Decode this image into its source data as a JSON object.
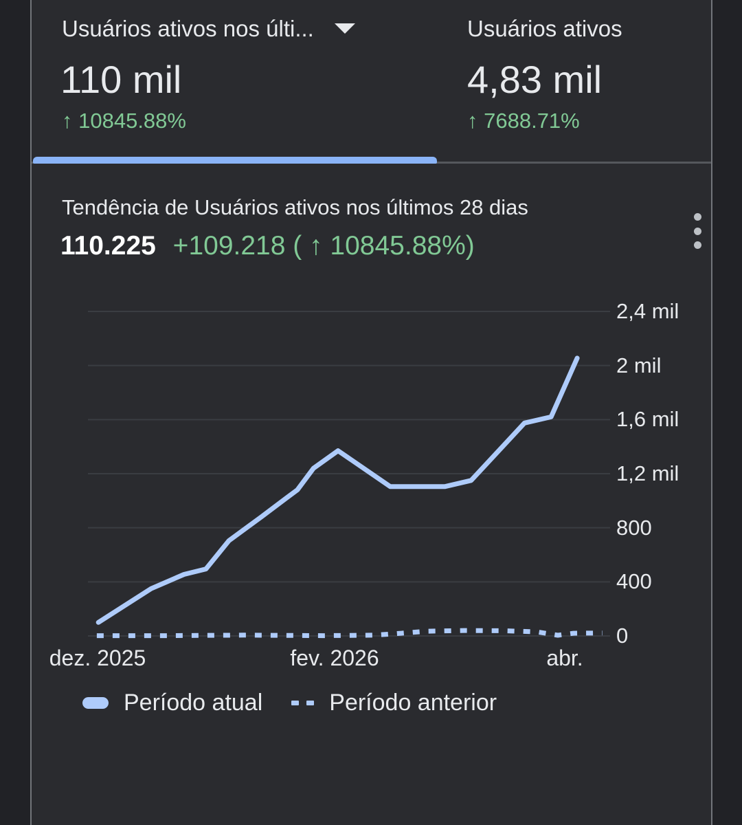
{
  "tabs": [
    {
      "label": "Usuários ativos nos últi...",
      "value": "110 mil",
      "delta": "↑ 10845.88%",
      "selected": true
    },
    {
      "label": "Usuários ativos",
      "value": "4,83 mil",
      "delta": "↑ 7688.71%",
      "selected": false
    }
  ],
  "chart": {
    "title": "Tendência de Usuários ativos nos últimos 28 dias",
    "value": "110.225",
    "delta": "+109.218 ( ↑ 10845.88%)"
  },
  "chart_data": {
    "type": "line",
    "title": "Tendência de Usuários ativos nos últimos 28 dias",
    "ylim": [
      0,
      2400
    ],
    "grid": true,
    "legend_position": "bottom",
    "y_ticks": [
      {
        "v": 2400,
        "label": "2,4 mil"
      },
      {
        "v": 2000,
        "label": "2 mil"
      },
      {
        "v": 1600,
        "label": "1,6 mil"
      },
      {
        "v": 1200,
        "label": "1,2 mil"
      },
      {
        "v": 800,
        "label": "800"
      },
      {
        "v": 400,
        "label": "400"
      },
      {
        "v": 0,
        "label": "0"
      }
    ],
    "x_ticks": [
      {
        "f": 0.018,
        "label": "dez. 2025"
      },
      {
        "f": 0.472,
        "label": "fev. 2026"
      },
      {
        "f": 0.913,
        "label": "abr."
      }
    ],
    "series": [
      {
        "name": "Período atual",
        "style": "solid",
        "color": "#aecbfa",
        "points": [
          {
            "f": 0.02,
            "v": 100
          },
          {
            "f": 0.121,
            "v": 350
          },
          {
            "f": 0.184,
            "v": 455
          },
          {
            "f": 0.226,
            "v": 495
          },
          {
            "f": 0.27,
            "v": 705
          },
          {
            "f": 0.332,
            "v": 880
          },
          {
            "f": 0.38,
            "v": 1020
          },
          {
            "f": 0.401,
            "v": 1080
          },
          {
            "f": 0.432,
            "v": 1240
          },
          {
            "f": 0.479,
            "v": 1370
          },
          {
            "f": 0.579,
            "v": 1105
          },
          {
            "f": 0.684,
            "v": 1105
          },
          {
            "f": 0.734,
            "v": 1150
          },
          {
            "f": 0.836,
            "v": 1575
          },
          {
            "f": 0.887,
            "v": 1620
          },
          {
            "f": 0.937,
            "v": 2055
          }
        ]
      },
      {
        "name": "Período anterior",
        "style": "dashed",
        "color": "#aecbfa",
        "points": [
          {
            "f": 0.017,
            "v": 2
          },
          {
            "f": 0.15,
            "v": 2
          },
          {
            "f": 0.3,
            "v": 6
          },
          {
            "f": 0.45,
            "v": 2
          },
          {
            "f": 0.55,
            "v": 6
          },
          {
            "f": 0.6,
            "v": 20
          },
          {
            "f": 0.65,
            "v": 35
          },
          {
            "f": 0.72,
            "v": 40
          },
          {
            "f": 0.8,
            "v": 38
          },
          {
            "f": 0.86,
            "v": 30
          },
          {
            "f": 0.9,
            "v": 5
          },
          {
            "f": 0.93,
            "v": 20
          },
          {
            "f": 0.985,
            "v": 22
          }
        ]
      }
    ]
  },
  "colors": {
    "accent_blue": "#8ab4f8",
    "line_blue": "#aecbfa",
    "positive_green": "#81c995"
  }
}
